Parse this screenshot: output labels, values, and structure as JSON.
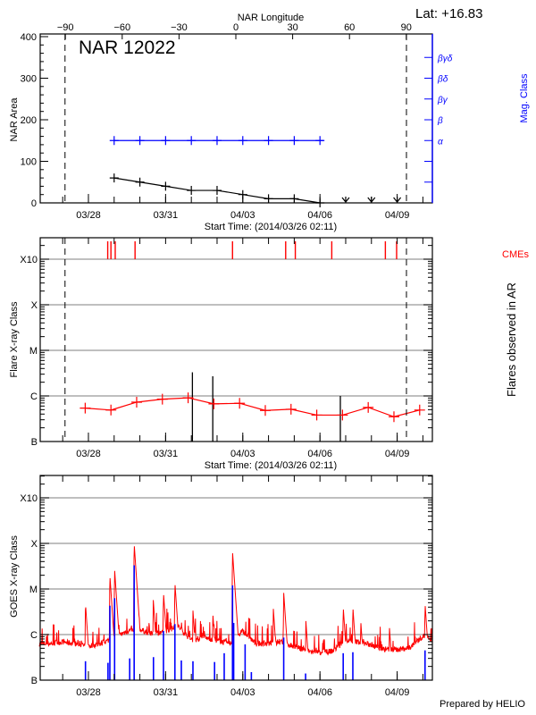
{
  "colors": {
    "black": "#000000",
    "red": "#ff0000",
    "blue": "#0000ff",
    "grid": "#999999"
  },
  "header": {
    "lat_label": "Lat: +16.83",
    "region_title": "NAR 12022"
  },
  "footer": {
    "prepared_by": "Prepared by HELIO"
  },
  "chart_data": [
    {
      "type": "line",
      "panel": "nar",
      "title": "NAR 12022",
      "xlabel": "Start Time: (2014/03/26 02:11)",
      "ylabel": "NAR Area",
      "y2label": "Mag. Class",
      "top_axis_label": "NAR Longitude",
      "xlim": [
        "2014-03-26T02:11",
        "2014-04-10T08:50"
      ],
      "ylim": [
        0,
        406
      ],
      "yticks": [
        0,
        100,
        200,
        300,
        400
      ],
      "x_tick_labels": [
        "03/28",
        "03/31",
        "04/03",
        "04/06",
        "04/09"
      ],
      "x_tick_dates": [
        "2014-03-28T00:00",
        "2014-03-31T00:00",
        "2014-04-03T00:00",
        "2014-04-06T00:00",
        "2014-04-09T00:00"
      ],
      "top_ticks": [
        -90,
        -60,
        -30,
        0,
        30,
        60,
        90
      ],
      "limb_crossings": [
        "2014-03-27T02:10",
        "2014-04-09T08:40"
      ],
      "mag_class_labels": [
        "α",
        "β",
        "βγ",
        "βδ",
        "βγδ"
      ],
      "series": [
        {
          "name": "NAR Area",
          "color": "#000000",
          "x": [
            "2014-03-29T00:00",
            "2014-03-30T00:00",
            "2014-03-31T00:00",
            "2014-04-01T00:00",
            "2014-04-02T00:00",
            "2014-04-03T00:00",
            "2014-04-04T00:00",
            "2014-04-05T00:00",
            "2014-04-06T00:00"
          ],
          "values": [
            60,
            50,
            40,
            30,
            30,
            20,
            10,
            10,
            0
          ]
        },
        {
          "name": "Mag. Class",
          "color": "#0000ff",
          "x": [
            "2014-03-29T00:00",
            "2014-03-30T00:00",
            "2014-03-31T00:00",
            "2014-04-01T00:00",
            "2014-04-02T00:00",
            "2014-04-03T00:00",
            "2014-04-04T00:00",
            "2014-04-05T00:00",
            "2014-04-06T00:00"
          ],
          "values": [
            "α",
            "α",
            "α",
            "α",
            "α",
            "α",
            "α",
            "α",
            "α"
          ]
        }
      ],
      "no_data_markers": [
        "2014-04-07T00:00",
        "2014-04-08T00:00",
        "2014-04-09T00:00"
      ]
    },
    {
      "type": "line",
      "panel": "flares",
      "xlabel": "Start Time: (2014/03/26 02:11)",
      "ylabel": "Flare X-ray Class",
      "y2label": "Flares observed in AR",
      "cme_label": "CMEs",
      "yscale": "log",
      "ytick_labels": [
        "B",
        "C",
        "M",
        "X",
        "X10"
      ],
      "grid": true,
      "series": [
        {
          "color": "#ff0000",
          "x": [
            "2014-03-27T21:00",
            "2014-03-28T21:00",
            "2014-03-29T21:00",
            "2014-03-30T21:00",
            "2014-03-31T21:00",
            "2014-04-01T21:00",
            "2014-04-02T21:00",
            "2014-04-03T21:00",
            "2014-04-04T21:00",
            "2014-04-05T21:00",
            "2014-04-06T21:00",
            "2014-04-07T21:00",
            "2014-04-08T21:00",
            "2014-04-09T21:00"
          ],
          "values": [
            "B5.4",
            "B4.9",
            "B7.3",
            "B8.5",
            "B9.1",
            "B6.7",
            "B6.9",
            "B4.8",
            "B5.1",
            "B3.8",
            "B3.8",
            "B5.6",
            "B3.5",
            "B4.9"
          ]
        }
      ],
      "flares": [
        {
          "time": "2014-04-01T01:00",
          "class": "C3.3"
        },
        {
          "time": "2014-04-01T20:00",
          "class": "C2.7"
        },
        {
          "time": "2014-04-06T19:00",
          "class": "C1.0"
        }
      ],
      "cmes": [
        "2014-03-28T18:00",
        "2014-03-28T21:00",
        "2014-03-29T01:00",
        "2014-03-29T19:30",
        "2014-04-02T14:25",
        "2014-04-04T16:00",
        "2014-04-05T01:00",
        "2014-04-06T11:00",
        "2014-04-08T13:00",
        "2014-04-08T23:30"
      ]
    },
    {
      "type": "line",
      "panel": "goes",
      "ylabel": "GOES X-ray Class",
      "yscale": "log",
      "ytick_labels": [
        "B",
        "C",
        "M",
        "X",
        "X10"
      ],
      "grid": true,
      "long_channel": {
        "color": "#ff0000",
        "baseline_x": [
          "2014-03-26T02:11",
          "2014-03-26T12:00",
          "2014-03-27T00:00",
          "2014-03-27T12:00",
          "2014-03-28T00:00",
          "2014-03-28T12:00",
          "2014-03-29T00:00",
          "2014-03-29T12:00",
          "2014-03-30T00:00",
          "2014-03-30T12:00",
          "2014-03-31T00:00",
          "2014-03-31T12:00",
          "2014-04-01T00:00",
          "2014-04-01T12:00",
          "2014-04-02T00:00",
          "2014-04-02T12:00",
          "2014-04-03T00:00",
          "2014-04-03T12:00",
          "2014-04-04T00:00",
          "2014-04-04T12:00",
          "2014-04-05T00:00",
          "2014-04-05T12:00",
          "2014-04-06T00:00",
          "2014-04-06T12:00",
          "2014-04-07T00:00",
          "2014-04-07T12:00",
          "2014-04-08T00:00",
          "2014-04-08T12:00",
          "2014-04-09T00:00",
          "2014-04-09T12:00",
          "2014-04-10T00:00",
          "2014-04-10T08:50"
        ],
        "baseline": [
          "B6.3",
          "B6.3",
          "B6.9",
          "B6.3",
          "B5.5",
          "B6.3",
          "B8.6",
          "C1.2",
          "C1.3",
          "C1.0",
          "C1.2",
          "C1.5",
          "B7.4",
          "B8.6",
          "B7.4",
          "B6.3",
          "C1.2",
          "B6.3",
          "B6.3",
          "B6.9",
          "B5.5",
          "B4.4",
          "B3.9",
          "B4.4",
          "B7.4",
          "B6.9",
          "B5.9",
          "B4.7",
          "B4.7",
          "B5.1",
          "B9.3",
          "B7.4"
        ],
        "peaks": [
          {
            "time": "2014-03-27T21:15",
            "class": "C4.9"
          },
          {
            "time": "2014-03-28T20:00",
            "class": "M2.0"
          },
          {
            "time": "2014-03-29T00:25",
            "class": "M2.7"
          },
          {
            "time": "2014-03-29T18:40",
            "class": "X1.0"
          },
          {
            "time": "2014-03-30T12:30",
            "class": "C5.8"
          },
          {
            "time": "2014-03-30T22:00",
            "class": "C8.5"
          },
          {
            "time": "2014-03-31T08:40",
            "class": "M1.4"
          },
          {
            "time": "2014-04-01T01:30",
            "class": "C3.4"
          },
          {
            "time": "2014-04-01T20:00",
            "class": "C3.0"
          },
          {
            "time": "2014-04-02T14:25",
            "class": "M6.6"
          },
          {
            "time": "2014-04-04T04:30",
            "class": "C3.7"
          },
          {
            "time": "2014-04-04T14:10",
            "class": "C8.3"
          },
          {
            "time": "2014-04-05T10:50",
            "class": "C2.0"
          },
          {
            "time": "2014-04-06T21:40",
            "class": "C4.1"
          },
          {
            "time": "2014-04-07T06:40",
            "class": "C4.1"
          },
          {
            "time": "2014-04-07T14:10",
            "class": "C1.8"
          },
          {
            "time": "2014-04-08T16:50",
            "class": "C1.4"
          },
          {
            "time": "2014-04-10T02:00",
            "class": "C4.9"
          }
        ]
      },
      "short_channel": {
        "color": "#0000ff",
        "peaks": [
          {
            "time": "2014-03-27T21:15",
            "class": "B2.6"
          },
          {
            "time": "2014-03-28T18:15",
            "class": "B2.4"
          },
          {
            "time": "2014-03-28T20:00",
            "class": "C4.3"
          },
          {
            "time": "2014-03-29T00:25",
            "class": "C6.3"
          },
          {
            "time": "2014-03-29T14:30",
            "class": "B3.0"
          },
          {
            "time": "2014-03-29T18:40",
            "class": "M3.3"
          },
          {
            "time": "2014-03-30T12:40",
            "class": "B3.2"
          },
          {
            "time": "2014-03-30T22:00",
            "class": "C1.2"
          },
          {
            "time": "2014-03-31T08:40",
            "class": "C1.7"
          },
          {
            "time": "2014-03-31T14:40",
            "class": "B2.7"
          },
          {
            "time": "2014-04-01T01:30",
            "class": "B2.6"
          },
          {
            "time": "2014-04-01T21:40",
            "class": "B2.5"
          },
          {
            "time": "2014-04-02T06:40",
            "class": "B3.9"
          },
          {
            "time": "2014-04-02T14:25",
            "class": "M1.2"
          },
          {
            "time": "2014-04-02T15:30",
            "class": "C1.8"
          },
          {
            "time": "2014-04-03T02:10",
            "class": "B6.1"
          },
          {
            "time": "2014-04-03T08:00",
            "class": "B1.5"
          },
          {
            "time": "2014-04-04T14:10",
            "class": "B8.6"
          },
          {
            "time": "2014-04-05T10:35",
            "class": "B1.4"
          },
          {
            "time": "2014-04-06T21:40",
            "class": "B3.9"
          },
          {
            "time": "2014-04-07T06:40",
            "class": "B4.1"
          },
          {
            "time": "2014-04-10T02:00",
            "class": "B4.5"
          }
        ]
      }
    }
  ]
}
